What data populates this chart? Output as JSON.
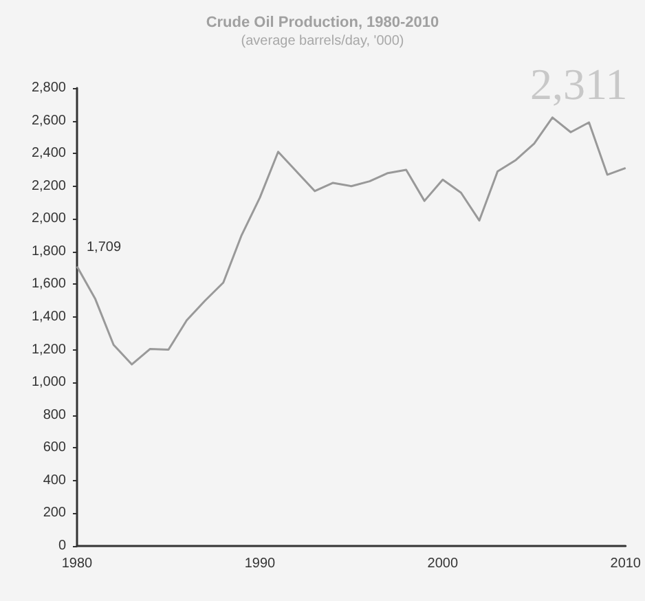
{
  "chart_data": {
    "type": "line",
    "title": "Crude Oil Production, 1980-2010",
    "subtitle": "(average barrels/day, '000)",
    "x": [
      1980,
      1981,
      1982,
      1983,
      1984,
      1985,
      1986,
      1987,
      1988,
      1989,
      1990,
      1991,
      1992,
      1993,
      1994,
      1995,
      1996,
      1997,
      1998,
      1999,
      2000,
      2001,
      2002,
      2003,
      2004,
      2005,
      2006,
      2007,
      2008,
      2009,
      2010
    ],
    "series": [
      {
        "color": "#999999",
        "values": [
          1709,
          1510,
          1230,
          1110,
          1205,
          1200,
          1380,
          1500,
          1610,
          1900,
          2130,
          2410,
          2290,
          2170,
          2220,
          2200,
          2230,
          2280,
          2300,
          2110,
          2240,
          2160,
          1990,
          2290,
          2360,
          2460,
          2620,
          2530,
          2590,
          2270,
          2311
        ]
      }
    ],
    "xlim": [
      1980,
      2010
    ],
    "xticks": [
      1980,
      1990,
      2000,
      2010
    ],
    "ylim": [
      0,
      2800
    ],
    "yticks": [
      0,
      200,
      400,
      600,
      800,
      {
        "value": 1000,
        "label": "1,000"
      },
      {
        "value": 1200,
        "label": "1,200"
      },
      {
        "value": 1400,
        "label": "1,400"
      },
      {
        "value": 1600,
        "label": "1,600"
      },
      {
        "value": 1800,
        "label": "1,800"
      },
      {
        "value": 2000,
        "label": "2,000"
      },
      {
        "value": 2200,
        "label": "2,200"
      },
      {
        "value": 2400,
        "label": "2,400"
      },
      {
        "value": 2600,
        "label": "2,600"
      },
      {
        "value": 2800,
        "label": "2,800"
      }
    ],
    "annotations": [
      {
        "text": "1,709",
        "x": 1980,
        "y": 1709
      },
      {
        "text": "2,311",
        "x": 2010,
        "y": 2311
      }
    ],
    "grid": false,
    "marker": "none",
    "line_style": "solid"
  }
}
